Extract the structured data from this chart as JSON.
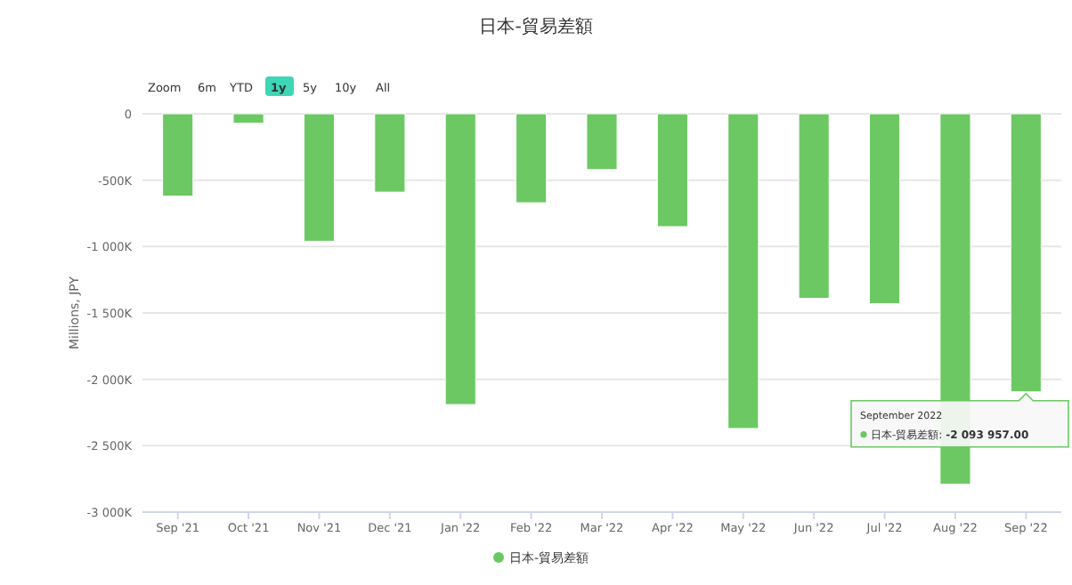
{
  "chart_data": {
    "type": "bar",
    "title": "日本-貿易差額",
    "ylabel": "Millions, JPY",
    "categories": [
      "Sep '21",
      "Oct '21",
      "Nov '21",
      "Dec '21",
      "Jan '22",
      "Feb '22",
      "Mar '22",
      "Apr '22",
      "May '22",
      "Jun '22",
      "Jul '22",
      "Aug '22",
      "Sep '22"
    ],
    "series": [
      {
        "name": "日本-貿易差額",
        "color": "#6cc863",
        "values": [
          -620000,
          -70000,
          -960000,
          -590000,
          -2190000,
          -670000,
          -420000,
          -850000,
          -2370000,
          -1390000,
          -1430000,
          -2790000,
          -2093957
        ]
      }
    ],
    "ylim": [
      -3000000,
      0
    ],
    "yticks": [
      {
        "value": -3000000,
        "label": "-3 000K"
      },
      {
        "value": -2500000,
        "label": "-2 500K"
      },
      {
        "value": -2000000,
        "label": "-2 000K"
      },
      {
        "value": -1500000,
        "label": "-1 500K"
      },
      {
        "value": -1000000,
        "label": "-1 000K"
      },
      {
        "value": -500000,
        "label": "-500K"
      },
      0
    ],
    "grid": "y",
    "legend": "bottom",
    "annotations": [
      "Zoom",
      "6m",
      "YTD",
      "1y",
      "5y",
      "10y",
      "All",
      {
        "text": "September 2022\n日本-貿易差額: -2 093 957.00",
        "x": "Sep '22",
        "y": -2093957
      }
    ]
  }
}
